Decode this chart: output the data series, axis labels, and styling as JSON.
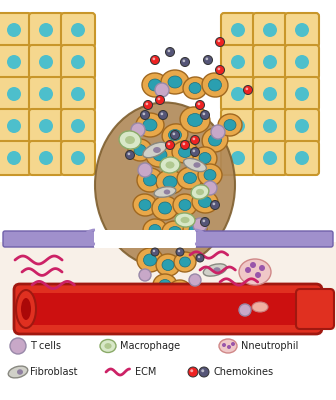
{
  "background_color": "#ffffff",
  "fig_width": 3.36,
  "fig_height": 4.0,
  "dpi": 100,
  "tissue_cell_color": "#f5d78e",
  "tissue_cell_border": "#c8962a",
  "tissue_nucleus_color": "#4dbfcc",
  "tumor_cell_color": "#e8a84a",
  "tumor_nucleus_color": "#2a9fb0",
  "stroma_color": "#c8b89a",
  "basement_membrane_color": "#9b8dc0",
  "blood_vessel_color": "#e03020",
  "blood_vessel_inner": "#c01010",
  "ecm_color": "#cc2266",
  "t_cell_color": "#c8a8c8",
  "t_cell_border": "#9888a8",
  "macrophage_color": "#d8e8c8",
  "macrophage_border": "#8aaa68",
  "neutrophil_color": "#f0c8c8",
  "neutrophil_border": "#d08888",
  "fibroblast_color": "#c8c8c8",
  "fibroblast_border": "#888888",
  "chemokine_red": "#ee2222",
  "chemokine_gray": "#555577",
  "legend_labels": [
    "T cells",
    "Macrophage",
    "Nneutrophil",
    "Fibroblast",
    "ECM",
    "Chemokines"
  ]
}
